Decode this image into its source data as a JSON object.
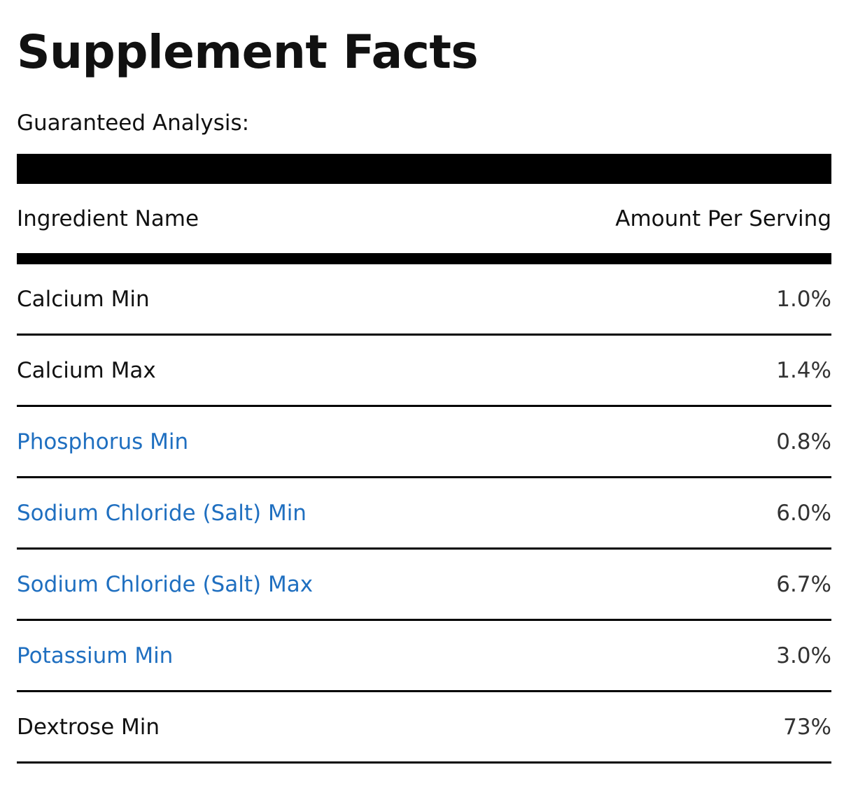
{
  "title": "Supplement Facts",
  "subtitle": "Guaranteed Analysis:",
  "header": {
    "ingredient": "Ingredient Name",
    "amount": "Amount Per Serving"
  },
  "colors": {
    "link": "#1f6fc0",
    "text": "#111111"
  },
  "rows": [
    {
      "name": "Calcium Min",
      "amount": "1.0%",
      "link": false
    },
    {
      "name": "Calcium Max",
      "amount": "1.4%",
      "link": false
    },
    {
      "name": "Phosphorus Min",
      "amount": "0.8%",
      "link": true
    },
    {
      "name": "Sodium Chloride (Salt) Min",
      "amount": "6.0%",
      "link": true
    },
    {
      "name": "Sodium Chloride (Salt) Max",
      "amount": "6.7%",
      "link": true
    },
    {
      "name": "Potassium Min",
      "amount": "3.0%",
      "link": true
    },
    {
      "name": "Dextrose Min",
      "amount": "73%",
      "link": false
    }
  ]
}
